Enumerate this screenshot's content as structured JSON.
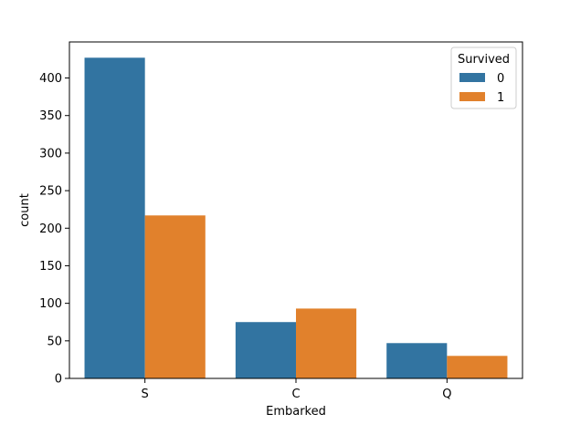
{
  "chart_data": {
    "type": "bar",
    "title": "",
    "xlabel": "Embarked",
    "ylabel": "count",
    "categories": [
      "S",
      "C",
      "Q"
    ],
    "series": [
      {
        "name": "0",
        "values": [
          427,
          75,
          47
        ],
        "color": "#3274a1"
      },
      {
        "name": "1",
        "values": [
          217,
          93,
          30
        ],
        "color": "#e1812c"
      }
    ],
    "ylim": [
      0,
      448
    ],
    "yticks": [
      0,
      50,
      100,
      150,
      200,
      250,
      300,
      350,
      400
    ],
    "grid": false,
    "legend": {
      "title": "Survived",
      "position": "top-right"
    }
  }
}
